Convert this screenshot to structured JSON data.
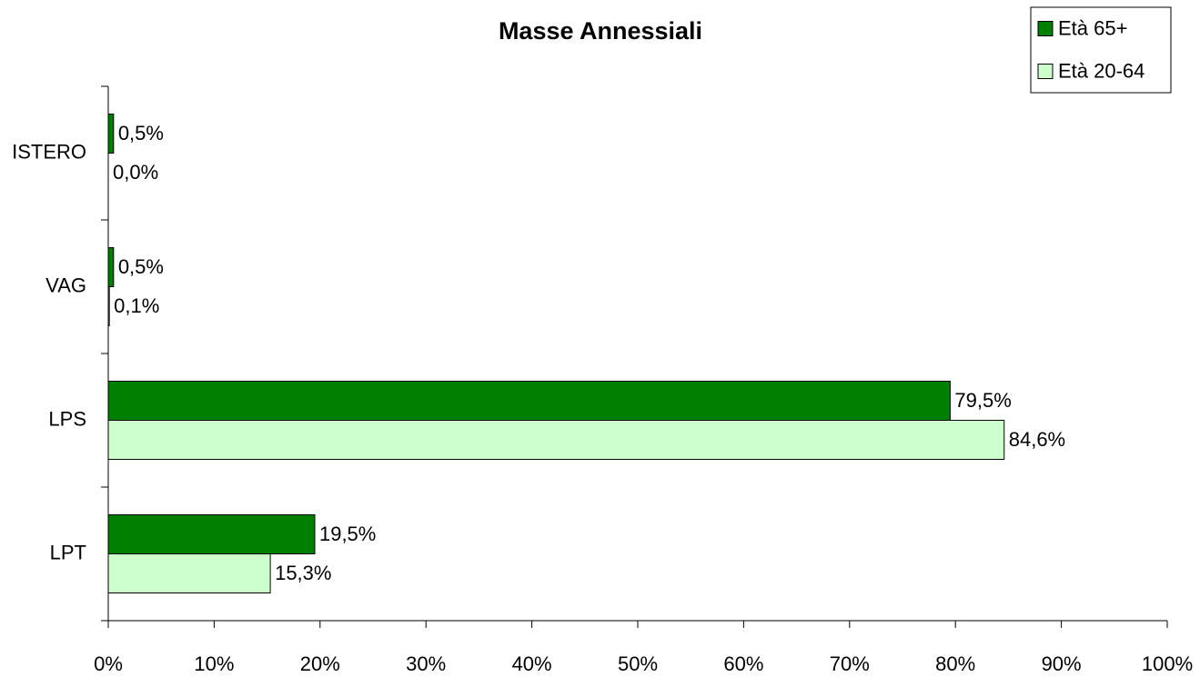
{
  "chart_data": {
    "type": "barh",
    "title": "Masse Annessiali",
    "categories": [
      "ISTERO",
      "VAG",
      "LPS",
      "LPT"
    ],
    "series": [
      {
        "name": "Età 65+",
        "color": "#008000",
        "values": [
          0.5,
          0.5,
          79.5,
          19.5
        ],
        "value_labels": [
          "0,5%",
          "0,5%",
          "79,5%",
          "19,5%"
        ]
      },
      {
        "name": "Età 20-64",
        "color": "#ccffcc",
        "values": [
          0.0,
          0.1,
          84.6,
          15.3
        ],
        "value_labels": [
          "0,0%",
          "0,1%",
          "84,6%",
          "15,3%"
        ]
      }
    ],
    "xlim": [
      0,
      100
    ],
    "xticks": [
      {
        "value": 0,
        "label": "0%"
      },
      {
        "value": 10,
        "label": "10%"
      },
      {
        "value": 20,
        "label": "20%"
      },
      {
        "value": 30,
        "label": "30%"
      },
      {
        "value": 40,
        "label": "40%"
      },
      {
        "value": 50,
        "label": "50%"
      },
      {
        "value": 60,
        "label": "60%"
      },
      {
        "value": 70,
        "label": "70%"
      },
      {
        "value": 80,
        "label": "80%"
      },
      {
        "value": 90,
        "label": "90%"
      },
      {
        "value": 100,
        "label": "100%"
      }
    ],
    "legend": "top-right"
  }
}
